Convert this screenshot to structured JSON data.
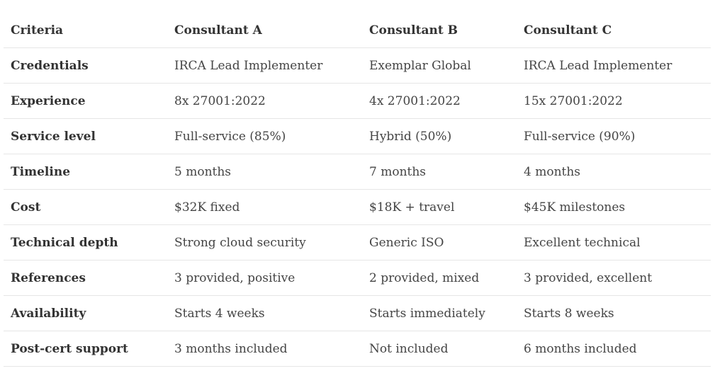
{
  "table": {
    "headers": [
      "Criteria",
      "Consultant A",
      "Consultant B",
      "Consultant C"
    ],
    "rows": [
      [
        "Credentials",
        "IRCA Lead Implementer",
        "Exemplar Global",
        "IRCA Lead Implementer"
      ],
      [
        "Experience",
        "8x 27001:2022",
        "4x 27001:2022",
        "15x 27001:2022"
      ],
      [
        "Service level",
        "Full-service (85%)",
        "Hybrid (50%)",
        "Full-service (90%)"
      ],
      [
        "Timeline",
        "5 months",
        "7 months",
        "4 months"
      ],
      [
        "Cost",
        "$32K fixed",
        "$18K + travel",
        "$45K milestones"
      ],
      [
        "Technical depth",
        "Strong cloud security",
        "Generic ISO",
        "Excellent technical"
      ],
      [
        "References",
        "3 provided, positive",
        "2 provided, mixed",
        "3 provided, excellent"
      ],
      [
        "Availability",
        "Starts 4 weeks",
        "Starts immediately",
        "Starts 8 weeks"
      ],
      [
        "Post-cert support",
        "3 months included",
        "Not included",
        "6 months included"
      ]
    ]
  }
}
